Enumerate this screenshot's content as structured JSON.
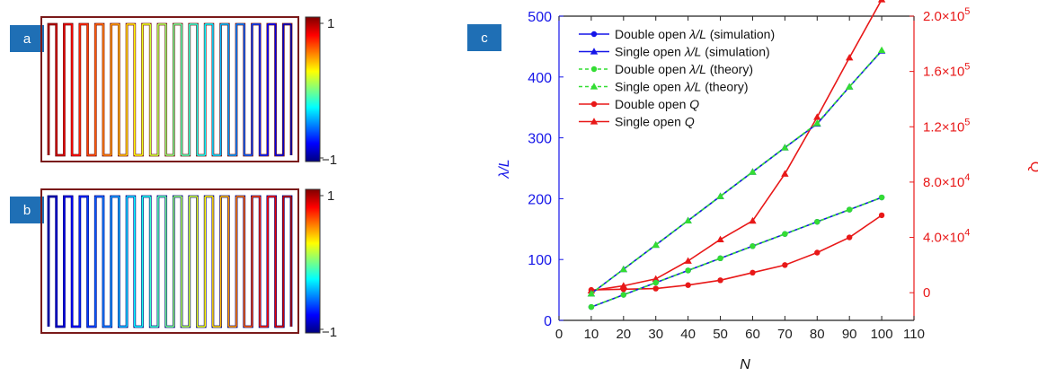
{
  "panels": {
    "a": {
      "tag": "a",
      "colorbar": {
        "max_label": "1",
        "min_label": "−1"
      },
      "field_trend": "decreasing",
      "finger_count": 32
    },
    "b": {
      "tag": "b",
      "colorbar": {
        "max_label": "1",
        "min_label": "−1"
      },
      "field_trend": "increasing",
      "finger_count": 32
    },
    "c": {
      "tag": "c"
    }
  },
  "colors": {
    "tag_bg": "#1f6fb5",
    "left_axis": "#1515e8",
    "right_axis": "#e81818",
    "sim_line": "#1515e8",
    "theory_line": "#33dd33",
    "q_line": "#e81818"
  },
  "chart_data": {
    "type": "line",
    "xlabel": "N",
    "ylabel_left": "λ/L",
    "ylabel_right": "Q",
    "xlim": [
      0,
      110
    ],
    "ylim_left": [
      0,
      500
    ],
    "ylim_right": [
      -20000,
      200000
    ],
    "x_ticks": [
      "0",
      "10",
      "20",
      "30",
      "40",
      "50",
      "60",
      "70",
      "80",
      "90",
      "100",
      "110"
    ],
    "left_ticks": [
      "0",
      "100",
      "200",
      "300",
      "400",
      "500"
    ],
    "right_ticks": [
      {
        "v": 0,
        "base": "0",
        "exp": ""
      },
      {
        "v": 40000,
        "base": "4.0×10",
        "exp": "4"
      },
      {
        "v": 80000,
        "base": "8.0×10",
        "exp": "4"
      },
      {
        "v": 120000,
        "base": "1.2×10",
        "exp": "5"
      },
      {
        "v": 160000,
        "base": "1.6×10",
        "exp": "5"
      },
      {
        "v": 200000,
        "base": "2.0×10",
        "exp": "5"
      }
    ],
    "x": [
      10,
      20,
      30,
      40,
      50,
      60,
      70,
      80,
      90,
      100
    ],
    "series": [
      {
        "name": "Double open λ/L (simulation)",
        "name_parts": [
          "Double open ",
          "λ/L",
          " (simulation)"
        ],
        "axis": "left",
        "marker": "circle",
        "dash": "solid",
        "color": "#1515e8",
        "values": [
          22,
          42,
          62,
          82,
          102,
          122,
          142,
          162,
          182,
          202
        ]
      },
      {
        "name": "Single open λ/L (simulation)",
        "name_parts": [
          "Single open ",
          "λ/L",
          " (simulation)"
        ],
        "axis": "left",
        "marker": "triangle",
        "dash": "solid",
        "color": "#1515e8",
        "values": [
          44,
          84,
          124,
          164,
          204,
          244,
          284,
          323,
          384,
          443
        ]
      },
      {
        "name": "Double open λ/L (theory)",
        "name_parts": [
          "Double open ",
          "λ/L",
          " (theory)"
        ],
        "axis": "left",
        "marker": "circle",
        "dash": "dashed",
        "color": "#33dd33",
        "values": [
          22,
          42,
          62,
          82,
          102,
          122,
          142,
          162,
          182,
          202
        ]
      },
      {
        "name": "Single open λ/L (theory)",
        "name_parts": [
          "Single open ",
          "λ/L",
          " (theory)"
        ],
        "axis": "left",
        "marker": "triangle",
        "dash": "dashed",
        "color": "#33dd33",
        "values": [
          44,
          84,
          124,
          164,
          204,
          244,
          284,
          324,
          384,
          444
        ]
      },
      {
        "name": "Double open Q",
        "name_parts": [
          "Double open ",
          "Q",
          ""
        ],
        "axis": "right",
        "marker": "circle",
        "dash": "solid",
        "color": "#e81818",
        "values": [
          2000,
          2500,
          3000,
          5500,
          9000,
          14500,
          20000,
          29000,
          40000,
          56000
        ]
      },
      {
        "name": "Single open Q",
        "name_parts": [
          "Single open ",
          "Q",
          ""
        ],
        "axis": "right",
        "marker": "triangle",
        "dash": "solid",
        "color": "#e81818",
        "values": [
          1500,
          5000,
          10000,
          23000,
          38500,
          52000,
          86000,
          127000,
          170000,
          212000
        ]
      }
    ],
    "legend_position": "top-left",
    "grid": false
  }
}
